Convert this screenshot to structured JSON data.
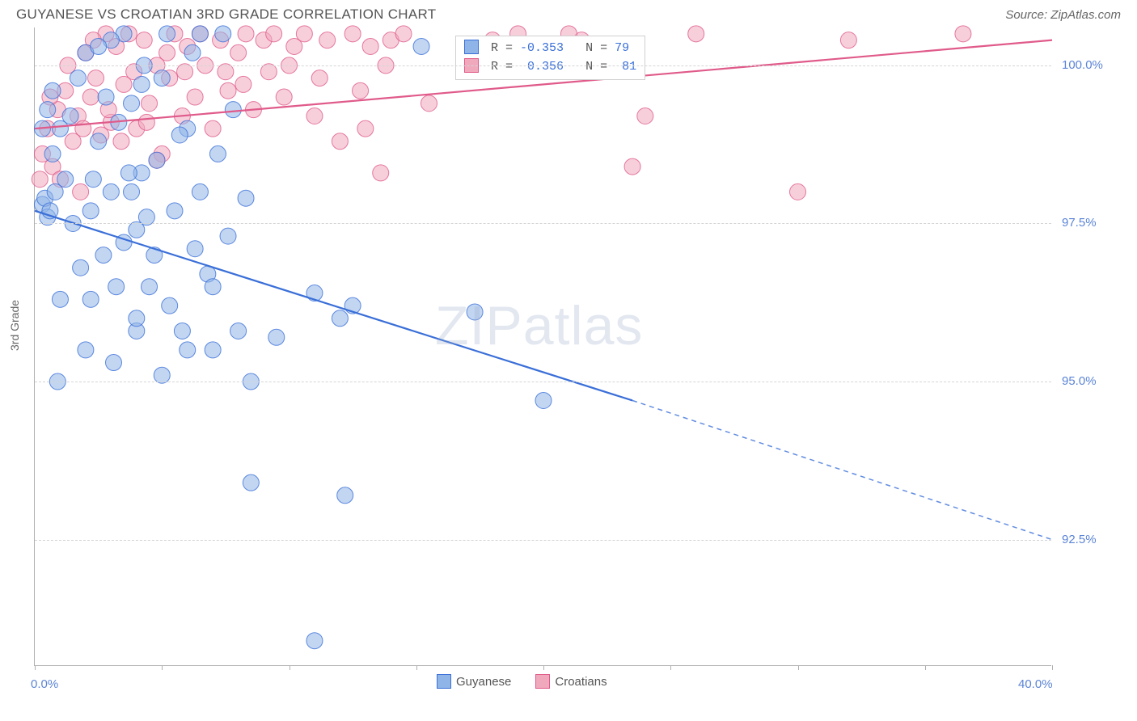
{
  "title": "GUYANESE VS CROATIAN 3RD GRADE CORRELATION CHART",
  "source_prefix": "Source: ",
  "source": "ZipAtlas.com",
  "ylabel": "3rd Grade",
  "watermark_a": "ZIP",
  "watermark_b": "atlas",
  "chart": {
    "type": "scatter",
    "background": "#ffffff",
    "grid_color": "#d5d5d5",
    "axis_color": "#b0b0b0",
    "xlim": [
      0,
      40
    ],
    "ylim": [
      90.5,
      100.6
    ],
    "x_ticks": [
      0,
      5,
      10,
      15,
      20,
      25,
      30,
      35,
      40
    ],
    "x_tick_labels": {
      "0": "0.0%",
      "40": "40.0%"
    },
    "y_gridlines": [
      92.5,
      95.0,
      97.5,
      100.0
    ],
    "y_tick_labels": [
      "92.5%",
      "95.0%",
      "97.5%",
      "100.0%"
    ],
    "marker_radius": 10,
    "marker_opacity": 0.55,
    "series": [
      {
        "name": "Guyanese",
        "fill": "#8fb5e8",
        "stroke": "#3a6fd8",
        "R": "-0.353",
        "N": "79",
        "trend": {
          "x1": 0,
          "y1": 97.7,
          "x2_solid": 23.5,
          "y2_solid": 94.7,
          "x2_dash": 40,
          "y2_dash": 92.5,
          "width": 2.2
        },
        "points": [
          [
            0.3,
            97.8
          ],
          [
            0.5,
            97.6
          ],
          [
            0.4,
            97.9
          ],
          [
            0.6,
            97.7
          ],
          [
            0.8,
            98.0
          ],
          [
            0.3,
            99.0
          ],
          [
            0.5,
            99.3
          ],
          [
            0.7,
            99.6
          ],
          [
            1.0,
            99.0
          ],
          [
            0.9,
            95.0
          ],
          [
            1.2,
            98.2
          ],
          [
            1.5,
            97.5
          ],
          [
            1.4,
            99.2
          ],
          [
            1.7,
            99.8
          ],
          [
            2.0,
            100.2
          ],
          [
            2.2,
            97.7
          ],
          [
            2.2,
            96.3
          ],
          [
            2.5,
            98.8
          ],
          [
            2.7,
            97.0
          ],
          [
            2.8,
            99.5
          ],
          [
            3.0,
            98.0
          ],
          [
            3.2,
            96.5
          ],
          [
            3.1,
            95.3
          ],
          [
            3.3,
            99.1
          ],
          [
            3.5,
            97.2
          ],
          [
            3.5,
            100.5
          ],
          [
            3.8,
            99.4
          ],
          [
            4.0,
            97.4
          ],
          [
            4.2,
            98.3
          ],
          [
            4.3,
            100.0
          ],
          [
            4.5,
            96.5
          ],
          [
            4.8,
            98.5
          ],
          [
            5.0,
            99.8
          ],
          [
            5.2,
            100.5
          ],
          [
            5.3,
            96.2
          ],
          [
            5.5,
            97.7
          ],
          [
            5.8,
            95.8
          ],
          [
            6.0,
            99.0
          ],
          [
            6.2,
            100.2
          ],
          [
            6.5,
            98.0
          ],
          [
            6.8,
            96.7
          ],
          [
            7.0,
            95.5
          ],
          [
            7.4,
            100.5
          ],
          [
            7.6,
            97.3
          ],
          [
            7.8,
            99.3
          ],
          [
            8.0,
            95.8
          ],
          [
            8.3,
            97.9
          ],
          [
            8.5,
            95.0
          ],
          [
            9.5,
            95.7
          ],
          [
            11.0,
            96.4
          ],
          [
            12.0,
            96.0
          ],
          [
            12.5,
            96.2
          ],
          [
            17.3,
            96.1
          ],
          [
            8.5,
            93.4
          ],
          [
            12.2,
            93.2
          ],
          [
            11.0,
            90.9
          ],
          [
            20.0,
            94.7
          ],
          [
            15.2,
            100.3
          ],
          [
            5.0,
            95.1
          ],
          [
            4.0,
            95.8
          ],
          [
            6.5,
            100.5
          ],
          [
            7.0,
            96.5
          ],
          [
            3.0,
            100.4
          ],
          [
            4.2,
            99.7
          ],
          [
            5.7,
            98.9
          ],
          [
            4.7,
            97.0
          ],
          [
            2.0,
            95.5
          ],
          [
            1.8,
            96.8
          ],
          [
            2.5,
            100.3
          ],
          [
            3.7,
            98.3
          ],
          [
            1.0,
            96.3
          ],
          [
            0.7,
            98.6
          ],
          [
            6.0,
            95.5
          ],
          [
            7.2,
            98.6
          ],
          [
            4.0,
            96.0
          ],
          [
            2.3,
            98.2
          ],
          [
            6.3,
            97.1
          ],
          [
            3.8,
            98.0
          ],
          [
            4.4,
            97.6
          ]
        ]
      },
      {
        "name": "Croatians",
        "fill": "#f0a8bd",
        "stroke": "#e05a8a",
        "R": "0.356",
        "N": "81",
        "trend": {
          "x1": 0,
          "y1": 99.0,
          "x2_solid": 40,
          "y2_solid": 100.4,
          "x2_dash": 40,
          "y2_dash": 100.4,
          "width": 2.2
        },
        "points": [
          [
            0.3,
            98.6
          ],
          [
            0.5,
            99.0
          ],
          [
            0.7,
            98.4
          ],
          [
            0.9,
            99.3
          ],
          [
            1.0,
            98.2
          ],
          [
            1.2,
            99.6
          ],
          [
            1.5,
            98.8
          ],
          [
            1.7,
            99.2
          ],
          [
            1.8,
            98.0
          ],
          [
            2.0,
            100.2
          ],
          [
            2.2,
            99.5
          ],
          [
            2.4,
            99.8
          ],
          [
            2.6,
            98.9
          ],
          [
            2.8,
            100.5
          ],
          [
            3.0,
            99.1
          ],
          [
            3.2,
            100.3
          ],
          [
            3.5,
            99.7
          ],
          [
            3.7,
            100.5
          ],
          [
            4.0,
            99.0
          ],
          [
            4.3,
            100.4
          ],
          [
            4.5,
            99.4
          ],
          [
            4.8,
            100.0
          ],
          [
            5.0,
            98.6
          ],
          [
            5.3,
            99.8
          ],
          [
            5.5,
            100.5
          ],
          [
            5.8,
            99.2
          ],
          [
            6.0,
            100.3
          ],
          [
            6.3,
            99.5
          ],
          [
            6.5,
            100.5
          ],
          [
            7.0,
            99.0
          ],
          [
            7.3,
            100.4
          ],
          [
            7.6,
            99.6
          ],
          [
            8.0,
            100.2
          ],
          [
            8.3,
            100.5
          ],
          [
            8.6,
            99.3
          ],
          [
            9.0,
            100.4
          ],
          [
            9.4,
            100.5
          ],
          [
            9.8,
            99.5
          ],
          [
            10.2,
            100.3
          ],
          [
            10.6,
            100.5
          ],
          [
            11.0,
            99.2
          ],
          [
            11.5,
            100.4
          ],
          [
            12.0,
            98.8
          ],
          [
            12.5,
            100.5
          ],
          [
            13.0,
            99.0
          ],
          [
            13.2,
            100.3
          ],
          [
            13.6,
            98.3
          ],
          [
            14.0,
            100.4
          ],
          [
            14.5,
            100.5
          ],
          [
            15.5,
            99.4
          ],
          [
            18.0,
            100.4
          ],
          [
            19.0,
            100.5
          ],
          [
            21.5,
            100.4
          ],
          [
            24.0,
            99.2
          ],
          [
            23.5,
            98.4
          ],
          [
            26.0,
            100.5
          ],
          [
            30.0,
            98.0
          ],
          [
            32.0,
            100.4
          ],
          [
            36.5,
            100.5
          ],
          [
            4.8,
            98.5
          ],
          [
            0.6,
            99.5
          ],
          [
            1.3,
            100.0
          ],
          [
            1.9,
            99.0
          ],
          [
            2.3,
            100.4
          ],
          [
            2.9,
            99.3
          ],
          [
            3.4,
            98.8
          ],
          [
            3.9,
            99.9
          ],
          [
            4.4,
            99.1
          ],
          [
            5.2,
            100.2
          ],
          [
            5.9,
            99.9
          ],
          [
            6.7,
            100.0
          ],
          [
            7.5,
            99.9
          ],
          [
            8.2,
            99.7
          ],
          [
            9.2,
            99.9
          ],
          [
            10.0,
            100.0
          ],
          [
            11.2,
            99.8
          ],
          [
            12.8,
            99.6
          ],
          [
            13.8,
            100.0
          ],
          [
            19.5,
            100.2
          ],
          [
            21.0,
            100.5
          ],
          [
            0.2,
            98.2
          ]
        ]
      }
    ]
  },
  "legend_bottom": [
    {
      "label": "Guyanese",
      "fill": "#8fb5e8",
      "stroke": "#3a6fd8"
    },
    {
      "label": "Croatians",
      "fill": "#f0a8bd",
      "stroke": "#e05a8a"
    }
  ]
}
